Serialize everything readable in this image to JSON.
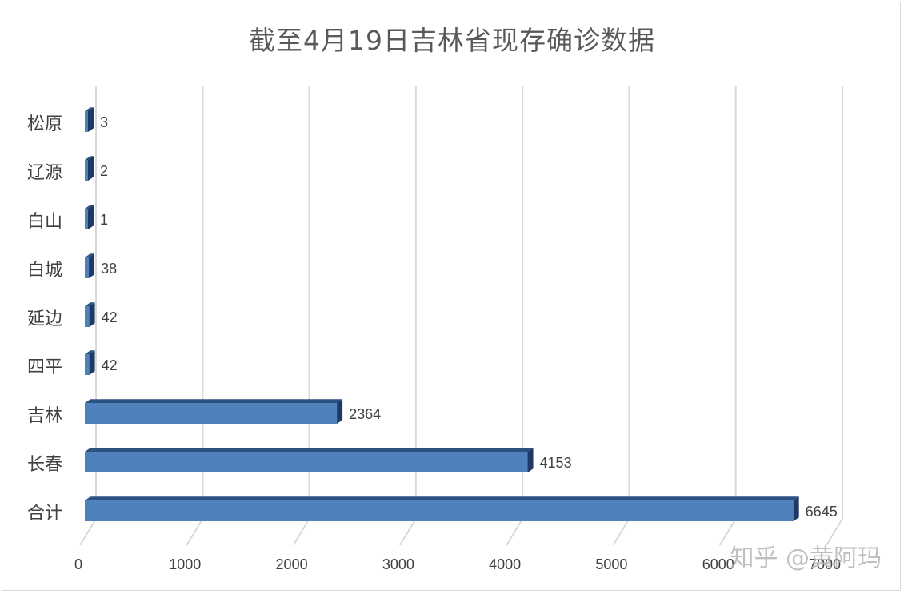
{
  "chart_data": {
    "type": "bar",
    "orientation": "horizontal",
    "style": "3d",
    "title": "截至4月19日吉林省现存确诊数据",
    "categories": [
      "合计",
      "长春",
      "吉林",
      "四平",
      "延边",
      "白城",
      "白山",
      "辽源",
      "松原"
    ],
    "values": [
      6645,
      4153,
      2364,
      42,
      42,
      38,
      1,
      2,
      3
    ],
    "xlim": [
      0,
      7000
    ],
    "x_ticks": [
      "0",
      "1000",
      "2000",
      "3000",
      "4000",
      "5000",
      "6000",
      "7000"
    ],
    "xlabel": "",
    "ylabel": "",
    "grid": "vertical",
    "data_labels": true,
    "colors": {
      "bar_front": "#4f81bd",
      "bar_top": "#2c5282",
      "bar_side": "#1f3864",
      "grid": "#d9d9d9",
      "text": "#404040"
    }
  },
  "watermark": "知乎 @黄阿玛"
}
